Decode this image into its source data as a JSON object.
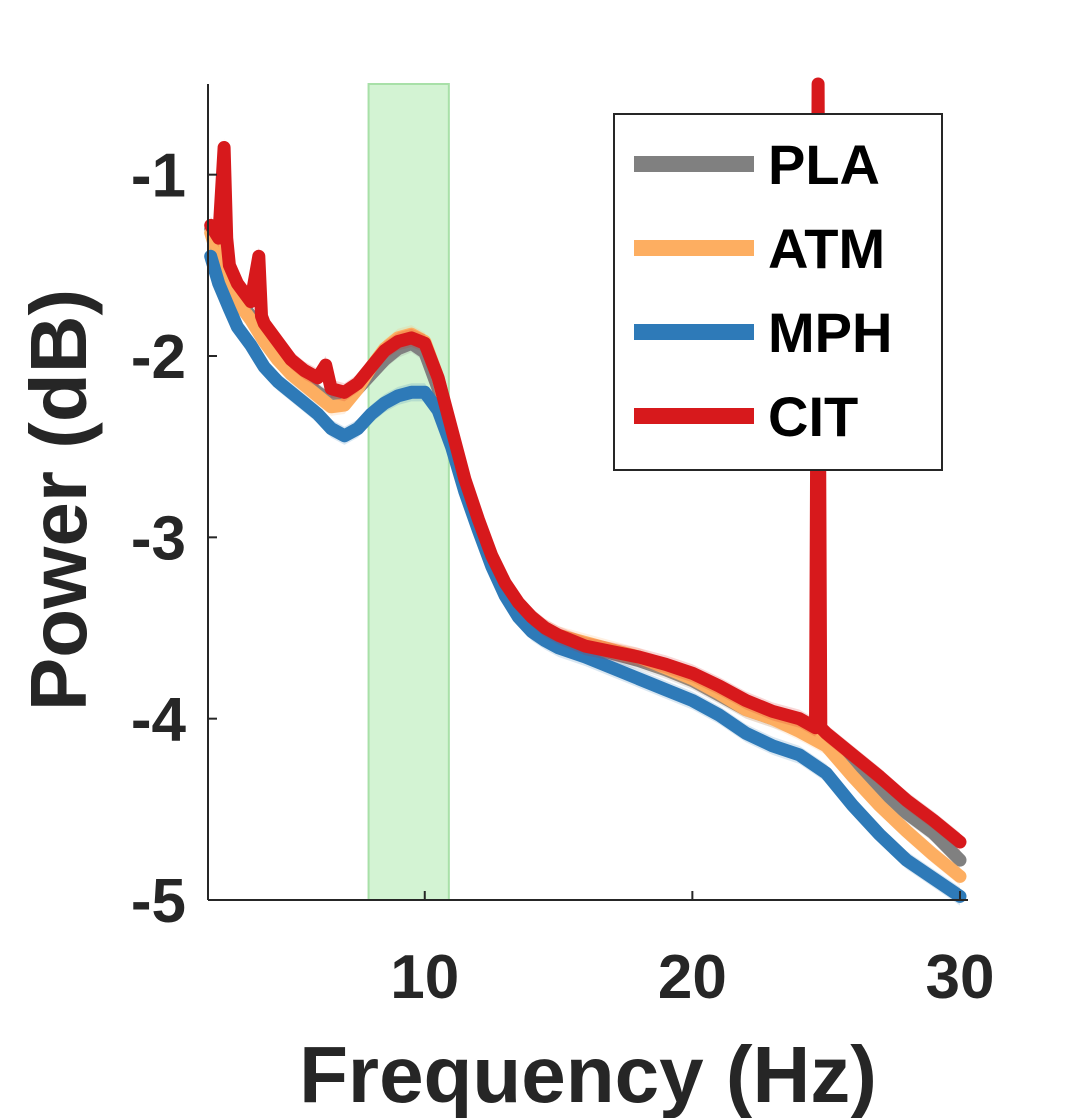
{
  "chart_data": {
    "type": "line",
    "title": "",
    "xlabel": "Frequency (Hz)",
    "ylabel": "Power (dB)",
    "xlim": [
      1.9,
      30.3
    ],
    "ylim": [
      -5,
      -0.5
    ],
    "xticks": [
      10,
      20,
      30
    ],
    "yticks": [
      -5,
      -4,
      -3,
      -2,
      -1
    ],
    "xtick_labels": [
      "10",
      "20",
      "30"
    ],
    "ytick_labels": [
      "-5",
      "-4",
      "-3",
      "-2",
      "-1"
    ],
    "grid": false,
    "legend_position": "top-right",
    "highlight_band": {
      "x0": 7.9,
      "x1": 10.9,
      "color": "#c8f0c8"
    },
    "series": [
      {
        "name": "PLA",
        "color": "#808080",
        "x": [
          2,
          2.3,
          2.7,
          3,
          3.5,
          4,
          4.5,
          5,
          5.5,
          6,
          6.5,
          7,
          7.5,
          8,
          8.5,
          9,
          9.5,
          10,
          10.5,
          11,
          11.5,
          12,
          12.5,
          13,
          13.5,
          14,
          14.5,
          15,
          16,
          17,
          18,
          19,
          20,
          21,
          22,
          23,
          24,
          25,
          26,
          27,
          28,
          29,
          30
        ],
        "y": [
          -1.3,
          -1.45,
          -1.58,
          -1.68,
          -1.78,
          -1.9,
          -2.0,
          -2.08,
          -2.14,
          -2.2,
          -2.25,
          -2.25,
          -2.18,
          -2.1,
          -2.02,
          -1.96,
          -1.93,
          -1.98,
          -2.18,
          -2.45,
          -2.72,
          -2.95,
          -3.15,
          -3.3,
          -3.4,
          -3.48,
          -3.52,
          -3.56,
          -3.6,
          -3.64,
          -3.68,
          -3.73,
          -3.79,
          -3.87,
          -3.95,
          -4.0,
          -4.05,
          -4.12,
          -4.25,
          -4.4,
          -4.52,
          -4.63,
          -4.78
        ]
      },
      {
        "name": "ATM",
        "color": "#fdae61",
        "x": [
          2,
          2.3,
          2.7,
          3,
          3.5,
          4,
          4.5,
          5,
          5.5,
          6,
          6.5,
          7,
          7.5,
          8,
          8.5,
          9,
          9.5,
          10,
          10.5,
          11,
          11.5,
          12,
          12.5,
          13,
          13.5,
          14,
          14.5,
          15,
          16,
          17,
          18,
          19,
          20,
          21,
          22,
          23,
          24,
          25,
          26,
          27,
          28,
          29,
          30
        ],
        "y": [
          -1.32,
          -1.47,
          -1.6,
          -1.7,
          -1.8,
          -1.92,
          -2.02,
          -2.1,
          -2.16,
          -2.22,
          -2.28,
          -2.27,
          -2.18,
          -2.06,
          -1.96,
          -1.9,
          -1.88,
          -1.92,
          -2.12,
          -2.42,
          -2.7,
          -2.92,
          -3.12,
          -3.28,
          -3.38,
          -3.45,
          -3.5,
          -3.54,
          -3.58,
          -3.62,
          -3.66,
          -3.72,
          -3.78,
          -3.86,
          -3.95,
          -4.0,
          -4.07,
          -4.15,
          -4.32,
          -4.48,
          -4.62,
          -4.75,
          -4.87
        ]
      },
      {
        "name": "MPH",
        "color": "#2e7ab8",
        "x": [
          2,
          2.3,
          2.7,
          3,
          3.5,
          4,
          4.5,
          5,
          5.5,
          6,
          6.5,
          7,
          7.5,
          8,
          8.5,
          9,
          9.5,
          10,
          10.5,
          11,
          11.5,
          12,
          12.5,
          13,
          13.5,
          14,
          14.5,
          15,
          16,
          17,
          18,
          19,
          20,
          21,
          22,
          23,
          24,
          25,
          26,
          27,
          28,
          29,
          30
        ],
        "y": [
          -1.45,
          -1.6,
          -1.74,
          -1.84,
          -1.94,
          -2.06,
          -2.14,
          -2.2,
          -2.26,
          -2.32,
          -2.4,
          -2.44,
          -2.4,
          -2.32,
          -2.26,
          -2.22,
          -2.2,
          -2.2,
          -2.3,
          -2.5,
          -2.75,
          -2.96,
          -3.16,
          -3.32,
          -3.44,
          -3.52,
          -3.57,
          -3.61,
          -3.66,
          -3.72,
          -3.78,
          -3.84,
          -3.9,
          -3.98,
          -4.08,
          -4.15,
          -4.2,
          -4.3,
          -4.48,
          -4.64,
          -4.78,
          -4.88,
          -4.98
        ]
      },
      {
        "name": "CIT",
        "color": "#d7191c",
        "x": [
          2,
          2.3,
          2.5,
          2.6,
          2.7,
          3,
          3.5,
          3.8,
          3.9,
          4,
          4.5,
          5,
          5.5,
          6,
          6.3,
          6.5,
          7,
          7.5,
          8,
          8.5,
          9,
          9.5,
          10,
          10.5,
          11,
          11.5,
          12,
          12.5,
          13,
          13.5,
          14,
          14.5,
          15,
          16,
          17,
          18,
          19,
          20,
          21,
          22,
          23,
          24,
          24.6,
          24.7,
          24.8,
          25,
          26,
          27,
          28,
          29,
          30
        ],
        "y": [
          -1.28,
          -1.35,
          -0.85,
          -1.35,
          -1.5,
          -1.6,
          -1.7,
          -1.45,
          -1.78,
          -1.82,
          -1.92,
          -2.02,
          -2.08,
          -2.12,
          -2.05,
          -2.18,
          -2.2,
          -2.15,
          -2.06,
          -1.97,
          -1.92,
          -1.9,
          -1.93,
          -2.12,
          -2.4,
          -2.68,
          -2.9,
          -3.1,
          -3.25,
          -3.36,
          -3.44,
          -3.5,
          -3.54,
          -3.6,
          -3.63,
          -3.66,
          -3.7,
          -3.75,
          -3.82,
          -3.9,
          -3.96,
          -4.0,
          -4.05,
          -0.5,
          -4.05,
          -4.08,
          -4.2,
          -4.32,
          -4.45,
          -4.56,
          -4.68
        ]
      }
    ],
    "legend": [
      {
        "label": "PLA",
        "color": "#808080"
      },
      {
        "label": "ATM",
        "color": "#fdae61"
      },
      {
        "label": "MPH",
        "color": "#2e7ab8"
      },
      {
        "label": "CIT",
        "color": "#d7191c"
      }
    ]
  }
}
